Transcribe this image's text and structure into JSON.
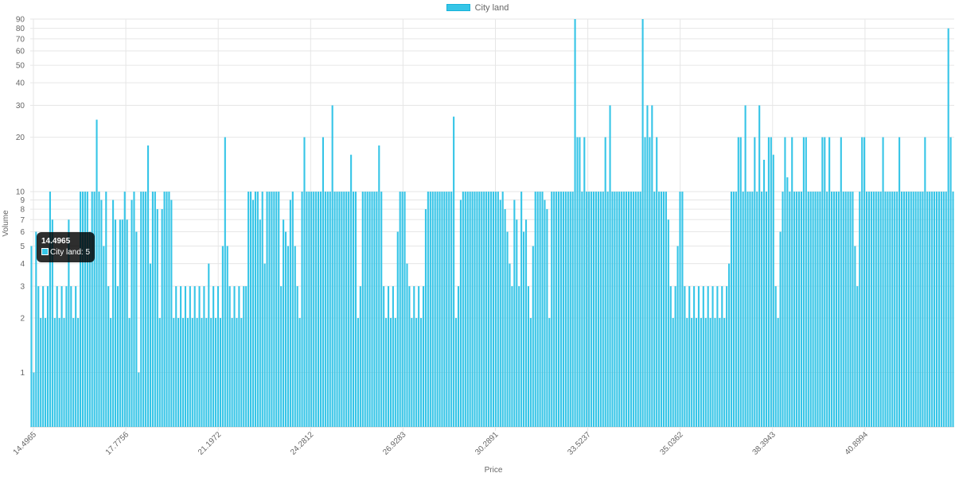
{
  "chart_data": {
    "type": "bar",
    "title": "",
    "legend": {
      "position": "top",
      "series_label": "City land"
    },
    "xlabel": "Price",
    "ylabel": "Volume",
    "yscale": "log",
    "ylim": [
      0.5,
      90
    ],
    "y_tick_labels": [
      "1",
      "2",
      "3",
      "4",
      "5",
      "6",
      "7",
      "8",
      "9",
      "10",
      "20",
      "30",
      "40",
      "50",
      "60",
      "70",
      "80",
      "90"
    ],
    "x_tick_labels": [
      "14.4965",
      "17.7756",
      "21.1972",
      "24.2812",
      "26.9283",
      "30.2891",
      "33.5237",
      "35.0362",
      "38.3943",
      "40.8994"
    ],
    "grid": true,
    "series": [
      {
        "name": "City land",
        "values": [
          5,
          1,
          6,
          3,
          2,
          3,
          2,
          3,
          10,
          7,
          2,
          3,
          2,
          3,
          2,
          3,
          7,
          3,
          2,
          3,
          2,
          10,
          10,
          10,
          10,
          6,
          10,
          10,
          25,
          10,
          9,
          5,
          10,
          3,
          2,
          9,
          7,
          3,
          7,
          7,
          10,
          7,
          2,
          9,
          10,
          6,
          1,
          10,
          10,
          10,
          18,
          4,
          10,
          10,
          8,
          2,
          8,
          10,
          10,
          10,
          9,
          2,
          3,
          2,
          3,
          2,
          3,
          2,
          3,
          2,
          3,
          2,
          3,
          2,
          3,
          2,
          4,
          2,
          3,
          2,
          3,
          2,
          5,
          20,
          5,
          3,
          2,
          3,
          2,
          3,
          2,
          3,
          3,
          10,
          10,
          9,
          10,
          10,
          7,
          10,
          4,
          10,
          10,
          10,
          10,
          10,
          10,
          3,
          7,
          6,
          5,
          9,
          10,
          5,
          3,
          2,
          10,
          20,
          10,
          10,
          10,
          10,
          10,
          10,
          10,
          20,
          10,
          10,
          10,
          30,
          10,
          10,
          10,
          10,
          10,
          10,
          10,
          16,
          10,
          10,
          2,
          3,
          10,
          10,
          10,
          10,
          10,
          10,
          10,
          18,
          10,
          3,
          2,
          3,
          2,
          3,
          2,
          6,
          10,
          10,
          10,
          4,
          3,
          2,
          3,
          2,
          3,
          2,
          3,
          8,
          10,
          10,
          10,
          10,
          10,
          10,
          10,
          10,
          10,
          10,
          10,
          26,
          2,
          3,
          9,
          10,
          10,
          10,
          10,
          10,
          10,
          10,
          10,
          10,
          10,
          10,
          10,
          10,
          10,
          10,
          10,
          9,
          10,
          8,
          6,
          4,
          3,
          9,
          7,
          3,
          10,
          6,
          7,
          3,
          2,
          5,
          10,
          10,
          10,
          10,
          9,
          8,
          2,
          10,
          10,
          10,
          10,
          10,
          10,
          10,
          10,
          10,
          10,
          90,
          20,
          20,
          10,
          20,
          10,
          10,
          10,
          10,
          10,
          10,
          10,
          10,
          20,
          10,
          30,
          10,
          10,
          10,
          10,
          10,
          10,
          10,
          10,
          10,
          10,
          10,
          10,
          10,
          90,
          20,
          30,
          20,
          30,
          10,
          20,
          10,
          10,
          10,
          10,
          7,
          3,
          2,
          3,
          5,
          10,
          10,
          3,
          2,
          3,
          2,
          3,
          2,
          3,
          2,
          3,
          2,
          3,
          2,
          3,
          2,
          3,
          2,
          3,
          2,
          3,
          4,
          10,
          10,
          10,
          20,
          20,
          10,
          30,
          10,
          10,
          10,
          20,
          10,
          30,
          10,
          15,
          10,
          20,
          20,
          16,
          3,
          2,
          6,
          10,
          20,
          12,
          10,
          20,
          10,
          10,
          10,
          10,
          20,
          20,
          10,
          10,
          10,
          10,
          10,
          10,
          20,
          20,
          10,
          20,
          10,
          10,
          10,
          10,
          20,
          10,
          10,
          10,
          10,
          10,
          5,
          3,
          10,
          20,
          20,
          10,
          10,
          10,
          10,
          10,
          10,
          10,
          20,
          10,
          10,
          10,
          10,
          10,
          10,
          20,
          10,
          10,
          10,
          10,
          10,
          10,
          10,
          10,
          10,
          10,
          20,
          10,
          10,
          10,
          10,
          10,
          10,
          10,
          10,
          10,
          80,
          20,
          10
        ]
      }
    ],
    "colors": {
      "bar": "#36c5e7",
      "bar_border": "#17b3da",
      "grid": "#e6e6e6",
      "axis_text": "#666666"
    }
  },
  "tooltip": {
    "title": "14.4965",
    "label": "City land: 5"
  }
}
